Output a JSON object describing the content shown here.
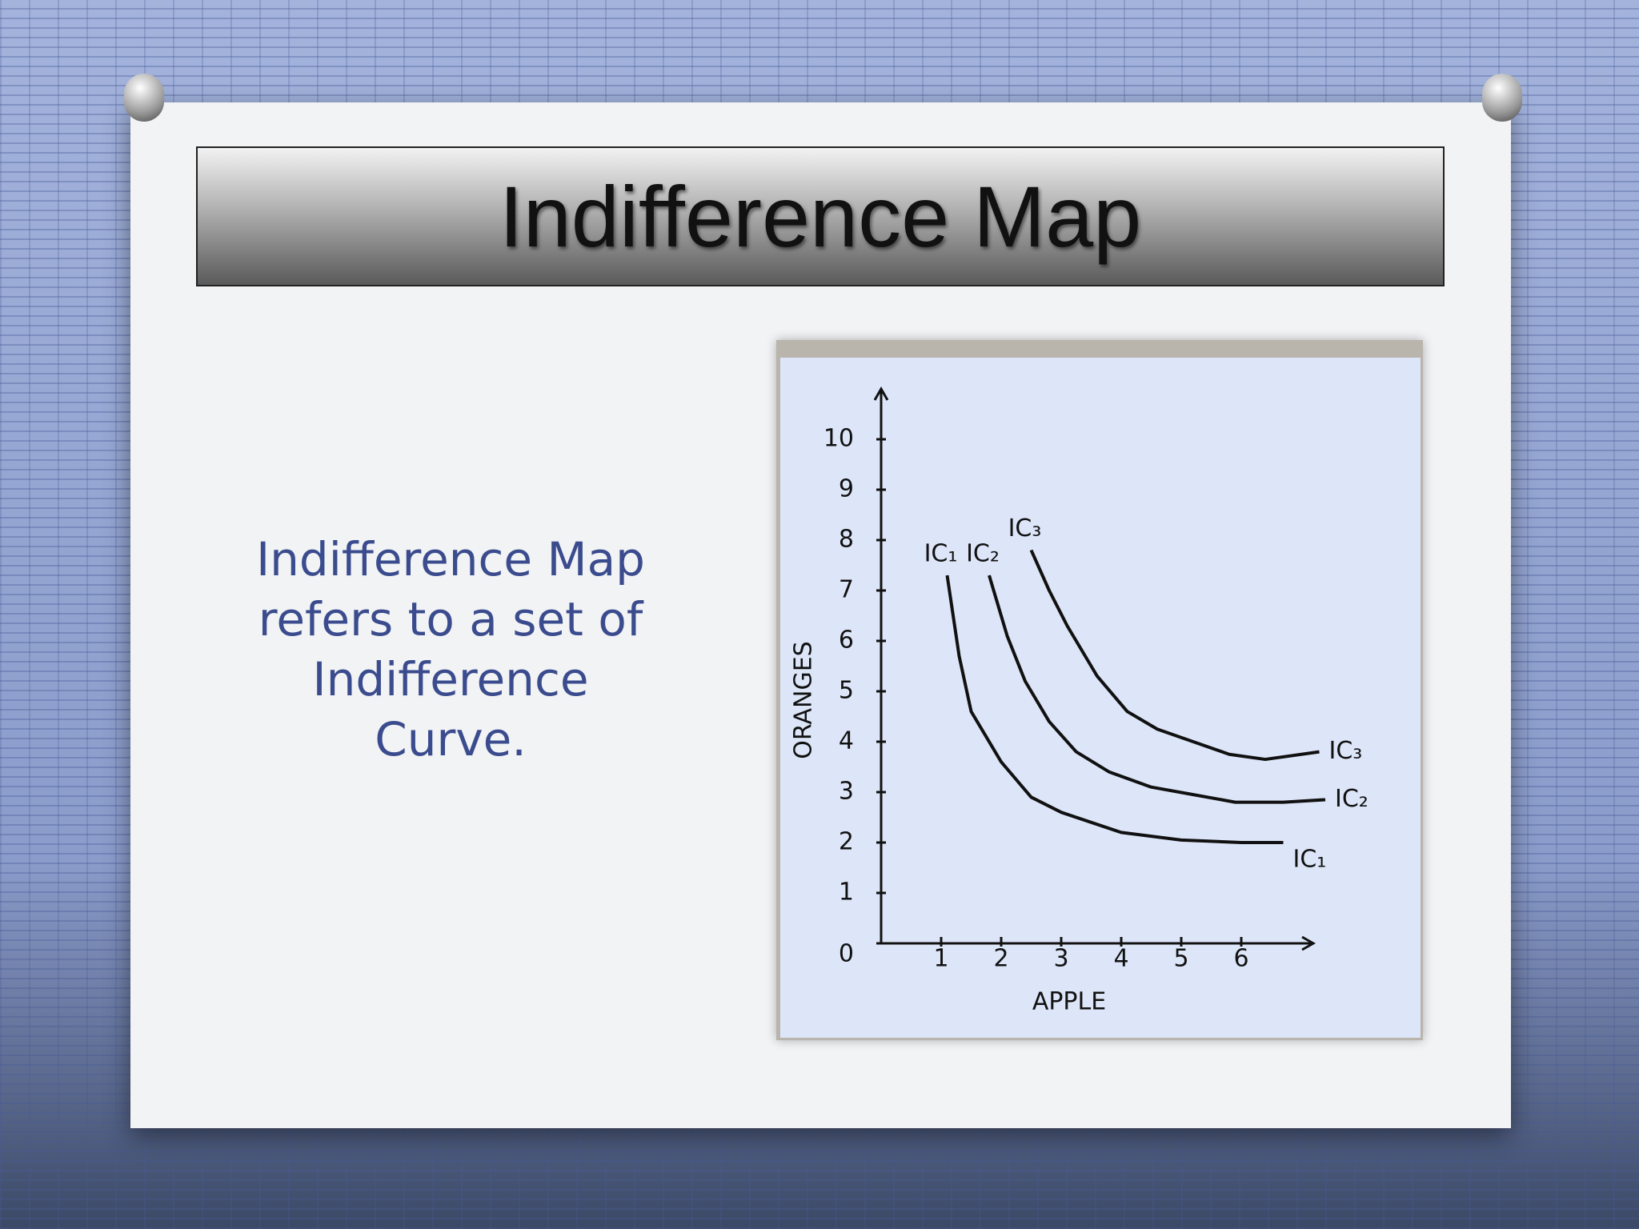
{
  "slide": {
    "title": "Indifference Map",
    "body": "Indifference Map refers to a set of Indifference Curve."
  },
  "chart_data": {
    "type": "line",
    "x_label": "APPLE",
    "y_label": "ORANGES",
    "xlim": [
      0,
      7.2
    ],
    "ylim": [
      0,
      11
    ],
    "xticks": [
      1,
      2,
      3,
      4,
      5,
      6
    ],
    "yticks": [
      0,
      1,
      2,
      3,
      4,
      5,
      6,
      7,
      8,
      9,
      10
    ],
    "series": [
      {
        "name": "IC₁",
        "color": "#111111",
        "x": [
          1.1,
          1.3,
          1.5,
          2,
          2.5,
          3,
          4,
          5,
          6,
          6.7
        ],
        "values": [
          7.3,
          5.7,
          4.6,
          3.6,
          2.9,
          2.6,
          2.2,
          2.05,
          2,
          2
        ]
      },
      {
        "name": "IC₂",
        "color": "#111111",
        "x": [
          1.8,
          2.1,
          2.4,
          2.8,
          3.25,
          3.8,
          4.5,
          5.2,
          5.9,
          6.7,
          7.4
        ],
        "values": [
          7.3,
          6.1,
          5.2,
          4.4,
          3.8,
          3.4,
          3.1,
          2.95,
          2.8,
          2.8,
          2.85
        ]
      },
      {
        "name": "IC₃",
        "color": "#111111",
        "x": [
          2.5,
          2.8,
          3.1,
          3.6,
          4.1,
          4.6,
          5.2,
          5.8,
          6.4,
          7.3
        ],
        "values": [
          7.8,
          7,
          6.3,
          5.3,
          4.6,
          4.25,
          4,
          3.75,
          3.65,
          3.8
        ]
      }
    ]
  }
}
